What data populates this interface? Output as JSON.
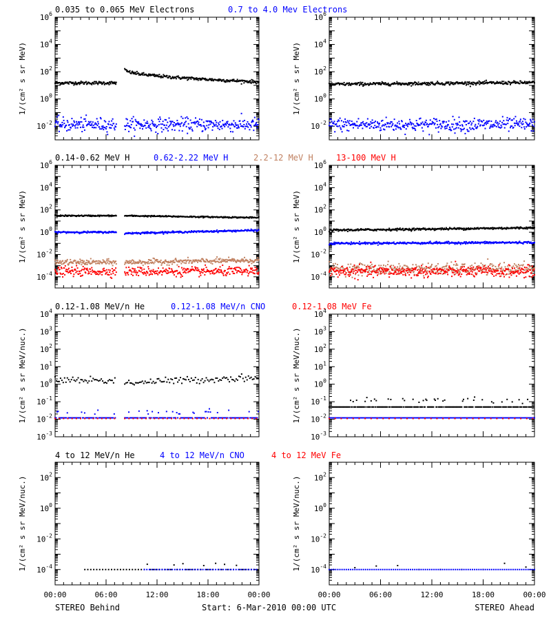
{
  "colors": {
    "black": "#000000",
    "blue": "#0000ff",
    "tan": "#c08060",
    "red": "#ff0000"
  },
  "x_axis": {
    "tick_labels": [
      "00:00",
      "06:00",
      "12:00",
      "18:00",
      "00:00"
    ],
    "range_hours": [
      0,
      24
    ]
  },
  "footer": {
    "left": "STEREO Behind",
    "center": "Start:  6-Mar-2010 00:00 UTC",
    "right": "STEREO Ahead"
  },
  "chart_data": [
    {
      "type": "scatter",
      "row_titles": [
        {
          "text": "0.035 to 0.065 MeV Electrons",
          "color": "black"
        },
        {
          "text": "0.7 to 4.0 Mev Electrons",
          "color": "blue"
        }
      ],
      "ylabel": "1/(cm² s sr MeV)",
      "y_scale": "log",
      "ylim": [
        0.001,
        1000000
      ],
      "y_ticks": [
        {
          "value": 0.01,
          "base": "10",
          "exp": "-2"
        },
        {
          "value": 1,
          "base": "10",
          "exp": "0"
        },
        {
          "value": 100,
          "base": "10",
          "exp": "2"
        },
        {
          "value": 10000,
          "base": "10",
          "exp": "4"
        },
        {
          "value": 1000000,
          "base": "10",
          "exp": "6"
        }
      ],
      "panels": [
        {
          "spacecraft": "STEREO Behind",
          "series": [
            {
              "color": "black",
              "segments": [
                [
                  0,
                  7.2,
                  15,
                  15
                ],
                [
                  8.2,
                  24,
                  150,
                  18
                ]
              ],
              "decay": true,
              "scatter": 0.06
            },
            {
              "color": "blue",
              "segments": [
                [
                  0,
                  7.2,
                  0.013,
                  0.013
                ],
                [
                  8.2,
                  24,
                  0.013,
                  0.013
                ]
              ],
              "scatter": 0.25
            }
          ]
        },
        {
          "spacecraft": "STEREO Ahead",
          "series": [
            {
              "color": "black",
              "segments": [
                [
                  0,
                  24,
                  12,
                  16
                ]
              ],
              "scatter": 0.06
            },
            {
              "color": "blue",
              "segments": [
                [
                  0,
                  24,
                  0.013,
                  0.013
                ]
              ],
              "scatter": 0.25
            }
          ]
        }
      ]
    },
    {
      "type": "scatter",
      "row_titles": [
        {
          "text": "0.14-0.62 MeV H",
          "color": "black"
        },
        {
          "text": "0.62-2.22 MeV H",
          "color": "blue"
        },
        {
          "text": "2.2-12 MeV H",
          "color": "tan"
        },
        {
          "text": "13-100 MeV H",
          "color": "red"
        }
      ],
      "ylabel": "1/(cm² s sr MeV)",
      "y_scale": "log",
      "ylim": [
        1e-05,
        1000000
      ],
      "y_ticks": [
        {
          "value": 0.0001,
          "base": "10",
          "exp": "-4"
        },
        {
          "value": 0.01,
          "base": "10",
          "exp": "-2"
        },
        {
          "value": 1,
          "base": "10",
          "exp": "0"
        },
        {
          "value": 100,
          "base": "10",
          "exp": "2"
        },
        {
          "value": 10000,
          "base": "10",
          "exp": "4"
        },
        {
          "value": 1000000,
          "base": "10",
          "exp": "6"
        }
      ],
      "panels": [
        {
          "spacecraft": "STEREO Behind",
          "series": [
            {
              "color": "black",
              "segments": [
                [
                  0,
                  7.2,
                  30,
                  30
                ],
                [
                  8.2,
                  24,
                  30,
                  20
                ]
              ],
              "scatter": 0.03
            },
            {
              "color": "blue",
              "segments": [
                [
                  0,
                  7.2,
                  1,
                  1
                ],
                [
                  8.2,
                  24,
                  0.8,
                  1.5
                ]
              ],
              "scatter": 0.04
            },
            {
              "color": "tan",
              "segments": [
                [
                  0,
                  7.2,
                  0.002,
                  0.002
                ],
                [
                  8.2,
                  24,
                  0.002,
                  0.003
                ]
              ],
              "scatter": 0.12
            },
            {
              "color": "red",
              "segments": [
                [
                  0,
                  7.2,
                  0.0003,
                  0.0003
                ],
                [
                  8.2,
                  24,
                  0.0003,
                  0.0003
                ]
              ],
              "scatter": 0.2
            }
          ]
        },
        {
          "spacecraft": "STEREO Ahead",
          "series": [
            {
              "color": "black",
              "segments": [
                [
                  0,
                  24,
                  1.5,
                  2.5
                ]
              ],
              "scatter": 0.05
            },
            {
              "color": "blue",
              "segments": [
                [
                  0,
                  24,
                  0.1,
                  0.12
                ]
              ],
              "scatter": 0.05
            },
            {
              "color": "tan",
              "segments": [
                [
                  0,
                  24,
                  0.0005,
                  0.0005
                ]
              ],
              "scatter": 0.25
            },
            {
              "color": "red",
              "segments": [
                [
                  0,
                  24,
                  0.0003,
                  0.0003
                ]
              ],
              "scatter": 0.25
            }
          ]
        }
      ]
    },
    {
      "type": "scatter",
      "row_titles": [
        {
          "text": "0.12-1.08 MeV/n He",
          "color": "black"
        },
        {
          "text": "0.12-1.08 MeV/n CNO",
          "color": "blue"
        },
        {
          "text": "0.12-1.08 MeV Fe",
          "color": "red"
        }
      ],
      "ylabel": "1/(cm² s sr MeV/nuc.)",
      "y_scale": "log",
      "ylim": [
        0.001,
        10000
      ],
      "y_ticks": [
        {
          "value": 0.001,
          "base": "10",
          "exp": "-3"
        },
        {
          "value": 0.01,
          "base": "10",
          "exp": "-2"
        },
        {
          "value": 0.1,
          "base": "10",
          "exp": "-1"
        },
        {
          "value": 1,
          "base": "10",
          "exp": "0"
        },
        {
          "value": 10,
          "base": "10",
          "exp": "1"
        },
        {
          "value": 100,
          "base": "10",
          "exp": "2"
        },
        {
          "value": 1000,
          "base": "10",
          "exp": "3"
        },
        {
          "value": 10000,
          "base": "10",
          "exp": "4"
        }
      ],
      "panels": [
        {
          "spacecraft": "STEREO Behind",
          "series": [
            {
              "color": "black",
              "segments": [
                [
                  0,
                  7.2,
                  1.8,
                  1.6
                ],
                [
                  8.2,
                  24,
                  1.2,
                  2.5
                ]
              ],
              "scatter": 0.1,
              "step": 0.16
            },
            {
              "color": "blue",
              "segments": [
                [
                  0,
                  7.2,
                  0.012,
                  0.012
                ],
                [
                  8.2,
                  24,
                  0.012,
                  0.012
                ]
              ],
              "scatter": 0.0,
              "step": 0.12,
              "extra_level": 0.025
            },
            {
              "color": "red",
              "segments": [
                [
                  0,
                  7.2,
                  0.011,
                  0.011
                ],
                [
                  8.2,
                  24,
                  0.011,
                  0.011
                ]
              ],
              "scatter": 0.0,
              "step": 0.5
            }
          ]
        },
        {
          "spacecraft": "STEREO Ahead",
          "series": [
            {
              "color": "black",
              "segments": [
                [
                  0,
                  24,
                  0.05,
                  0.05
                ]
              ],
              "scatter": 0.0,
              "step": 0.1,
              "extra_level": 0.12
            },
            {
              "color": "blue",
              "segments": [
                [
                  0,
                  24,
                  0.012,
                  0.012
                ]
              ],
              "scatter": 0.0,
              "step": 0.15
            },
            {
              "color": "red",
              "segments": [
                [
                  0,
                  24,
                  0.011,
                  0.011
                ]
              ],
              "scatter": 0.0,
              "step": 0.7
            }
          ]
        }
      ]
    },
    {
      "type": "scatter",
      "row_titles": [
        {
          "text": "4 to 12 MeV/n He",
          "color": "black"
        },
        {
          "text": "4 to 12 MeV/n CNO",
          "color": "blue"
        },
        {
          "text": "4 to 12 MeV Fe",
          "color": "red"
        }
      ],
      "ylabel": "1/(cm² s sr MeV/nuc.)",
      "y_scale": "log",
      "ylim": [
        1e-05,
        1000
      ],
      "y_ticks": [
        {
          "value": 0.0001,
          "base": "10",
          "exp": "-4"
        },
        {
          "value": 0.01,
          "base": "10",
          "exp": "-2"
        },
        {
          "value": 1,
          "base": "10",
          "exp": "0"
        },
        {
          "value": 100,
          "base": "10",
          "exp": "2"
        }
      ],
      "panels": [
        {
          "spacecraft": "STEREO Behind",
          "series": [
            {
              "color": "black",
              "segments": [
                [
                  3.5,
                  24,
                  0.0001,
                  0.0001
                ]
              ],
              "scatter": 0.0,
              "step": 0.35,
              "extra_level": 0.00022,
              "extra_from": 10.5
            },
            {
              "color": "blue",
              "segments": [
                [
                  10.5,
                  24,
                  0.0001,
                  0.0001
                ]
              ],
              "scatter": 0.0,
              "step": 0.3
            }
          ]
        },
        {
          "spacecraft": "STEREO Ahead",
          "series": [
            {
              "color": "black",
              "segments": [
                [
                  0.5,
                  24,
                  0.0001,
                  0.0001
                ]
              ],
              "scatter": 0.0,
              "step": 2.5,
              "extra_level": 0.00018
            },
            {
              "color": "blue",
              "segments": [
                [
                  0,
                  24,
                  0.0001,
                  0.0001
                ]
              ],
              "scatter": 0.0,
              "step": 0.25
            }
          ]
        }
      ]
    }
  ]
}
